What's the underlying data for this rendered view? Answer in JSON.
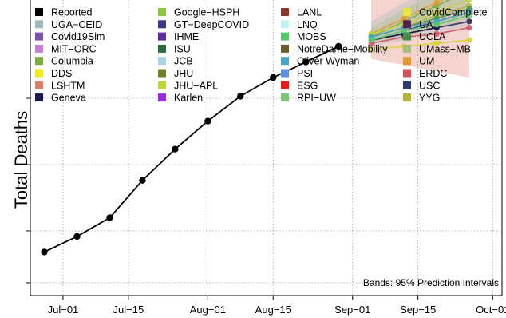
{
  "chart_data": {
    "type": "line",
    "title": "",
    "xlabel": "",
    "ylabel": "Total Deaths",
    "y_tick_labels_shown": false,
    "grid": true,
    "legend_position": "top-left",
    "note": "Bands: 95% Prediction Intervals",
    "x_ticks": [
      "Jul−01",
      "Jul−15",
      "Aug−01",
      "Aug−15",
      "Sep−01",
      "Sep−15",
      "Oct−01"
    ],
    "x_range": [
      "2020-06-24",
      "2020-10-03"
    ],
    "y_range": [
      0.0,
      1.0
    ],
    "reported": {
      "name": "Reported",
      "color": "#000000",
      "x": [
        "2020-06-27",
        "2020-07-04",
        "2020-07-11",
        "2020-07-18",
        "2020-07-25",
        "2020-08-01",
        "2020-08-08",
        "2020-08-15",
        "2020-08-22",
        "2020-08-29"
      ],
      "y": [
        0.14,
        0.19,
        0.25,
        0.37,
        0.47,
        0.56,
        0.64,
        0.7,
        0.75,
        0.8
      ]
    },
    "forecast_dates": [
      "2020-09-05",
      "2020-09-12",
      "2020-09-19",
      "2020-09-26"
    ],
    "bands": [
      {
        "name": "LSHTM",
        "color": "#e07a6a",
        "upper": [
          0.95,
          1.15,
          1.35,
          1.55
        ],
        "lower": [
          0.76,
          0.74,
          0.72,
          0.7
        ]
      },
      {
        "name": "UGA−CEID",
        "color": "#9fb9bf",
        "upper": [
          0.88,
          0.94,
          1.0,
          1.06
        ],
        "lower": [
          0.8,
          0.82,
          0.84,
          0.86
        ]
      },
      {
        "name": "UMass−MB",
        "color": "#a5bd7e",
        "upper": [
          0.86,
          0.92,
          0.97,
          1.02
        ],
        "lower": [
          0.81,
          0.83,
          0.86,
          0.89
        ]
      }
    ],
    "series": [
      {
        "name": "CovidComplete",
        "color": "#d4d425",
        "values": [
          0.79,
          0.8,
          0.81,
          0.82
        ]
      },
      {
        "name": "Columbia",
        "color": "#7aad3a",
        "values": [
          0.83,
          0.88,
          0.93,
          0.98
        ]
      },
      {
        "name": "UM",
        "color": "#e39b2a",
        "values": [
          0.84,
          0.89,
          0.94,
          0.99
        ]
      },
      {
        "name": "JHU−APL",
        "color": "#bdd63a",
        "values": [
          0.84,
          0.87,
          0.91,
          0.95
        ]
      },
      {
        "name": "YYG",
        "color": "#b5b537",
        "values": [
          0.83,
          0.86,
          0.9,
          0.93
        ]
      },
      {
        "name": "GT−DeepCOVID",
        "color": "#3a3a8c",
        "values": [
          0.82,
          0.85,
          0.88,
          0.91
        ]
      },
      {
        "name": "UCLA",
        "color": "#3f8f4a",
        "values": [
          0.83,
          0.86,
          0.89,
          0.92
        ]
      },
      {
        "name": "LANL",
        "color": "#8b3a2a",
        "values": [
          0.82,
          0.84,
          0.86,
          0.88
        ]
      },
      {
        "name": "ERDC",
        "color": "#d94c5c",
        "values": [
          0.81,
          0.83,
          0.84,
          0.86
        ]
      },
      {
        "name": "USC",
        "color": "#2e3a6e",
        "values": [
          0.82,
          0.84,
          0.86,
          0.88
        ]
      },
      {
        "name": "Geneva",
        "color": "#1a1a4a",
        "values": [
          0.82,
          0.84,
          0.86,
          null
        ]
      },
      {
        "name": "JCB",
        "color": "#a9d6e5",
        "values": [
          0.82,
          0.85,
          0.87,
          null
        ]
      },
      {
        "name": "Oliver Wyman",
        "color": "#49a6c9",
        "values": [
          0.83,
          0.86,
          0.88,
          0.91
        ]
      },
      {
        "name": "MOBS",
        "color": "#58c76a",
        "values": [
          0.82,
          0.85,
          0.87,
          0.9
        ]
      }
    ],
    "legend": [
      {
        "name": "Reported",
        "color": "#000000"
      },
      {
        "name": "UGA−CEID",
        "color": "#9fb9bf"
      },
      {
        "name": "Covid19Sim",
        "color": "#7a52a8"
      },
      {
        "name": "MIT−ORC",
        "color": "#c17fd6"
      },
      {
        "name": "Columbia",
        "color": "#7aad3a"
      },
      {
        "name": "DDS",
        "color": "#f2ea1a"
      },
      {
        "name": "LSHTM",
        "color": "#e07a6a"
      },
      {
        "name": "Geneva",
        "color": "#1a1a4a"
      },
      {
        "name": "Google−HSPH",
        "color": "#8cc63f"
      },
      {
        "name": "GT−DeepCOVID",
        "color": "#3a3a8c"
      },
      {
        "name": "IHME",
        "color": "#5a2d9a"
      },
      {
        "name": "ISU",
        "color": "#2d6b3a"
      },
      {
        "name": "JCB",
        "color": "#a9d6e5"
      },
      {
        "name": "JHU",
        "color": "#6f7f2a"
      },
      {
        "name": "JHU−APL",
        "color": "#bdd63a"
      },
      {
        "name": "Karlen",
        "color": "#9a2ddf"
      },
      {
        "name": "LANL",
        "color": "#8b3a2a"
      },
      {
        "name": "LNQ",
        "color": "#bff2f7"
      },
      {
        "name": "MOBS",
        "color": "#58c76a"
      },
      {
        "name": "NotreDame−Mobility",
        "color": "#6b5a2a"
      },
      {
        "name": "Oliver Wyman",
        "color": "#49a6c9"
      },
      {
        "name": "PSI",
        "color": "#5b8fe0"
      },
      {
        "name": "ESG",
        "color": "#f01818"
      },
      {
        "name": "RPI−UW",
        "color": "#7dc47d"
      },
      {
        "name": "CovidComplete",
        "color": "#e6e635"
      },
      {
        "name": "UA",
        "color": "#5a1d5a"
      },
      {
        "name": "UCLA",
        "color": "#3f8f4a"
      },
      {
        "name": "UMass−MB",
        "color": "#a5bd7e"
      },
      {
        "name": "UM",
        "color": "#e39b2a"
      },
      {
        "name": "ERDC",
        "color": "#d94c5c"
      },
      {
        "name": "USC",
        "color": "#2e3a6e"
      },
      {
        "name": "YYG",
        "color": "#b5b537"
      }
    ]
  }
}
